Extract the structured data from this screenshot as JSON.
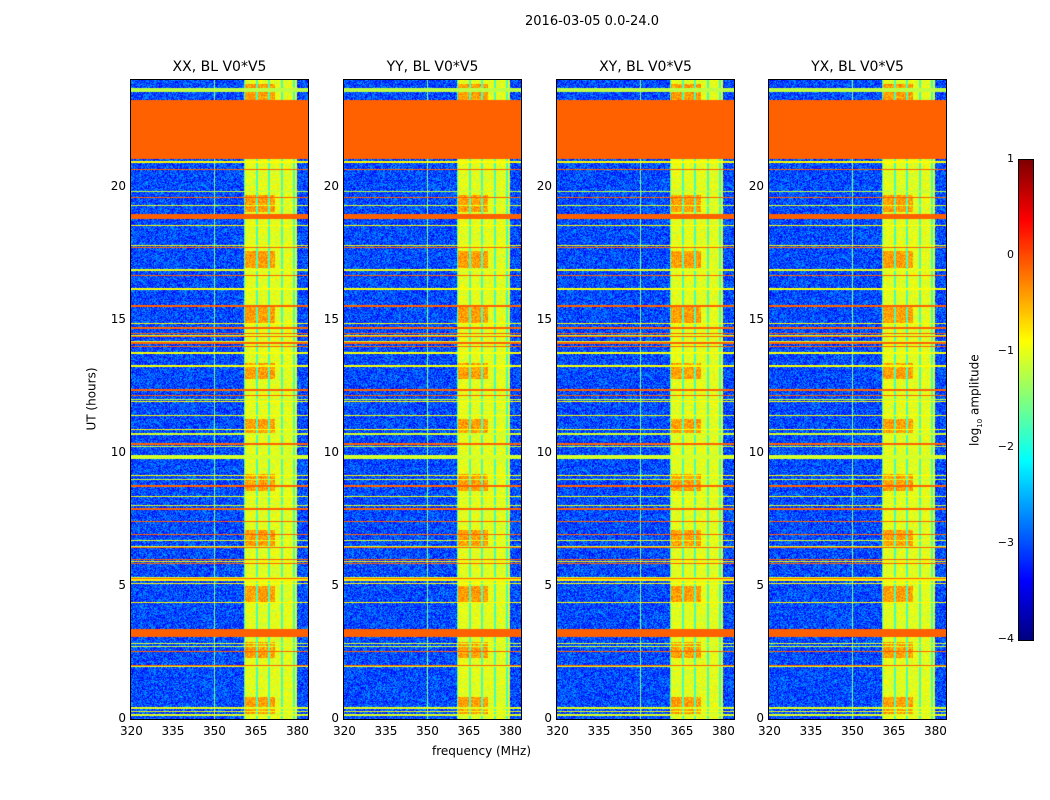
{
  "chart_data": {
    "type": "heatmap",
    "title": "2016-03-05 0.0-24.0",
    "xlabel": "frequency (MHz)",
    "ylabel": "UT (hours)",
    "xlim": [
      320,
      384
    ],
    "ylim": [
      0,
      24
    ],
    "xticks": [
      320,
      335,
      350,
      365,
      380
    ],
    "yticks": [
      0,
      5,
      10,
      15,
      20
    ],
    "panels": [
      {
        "title": "XX, BL V0*V5"
      },
      {
        "title": "YY, BL V0*V5"
      },
      {
        "title": "XY, BL V0*V5"
      },
      {
        "title": "YX, BL V0*V5"
      }
    ],
    "colorbar": {
      "label": "log10 amplitude",
      "label_main": "log",
      "label_sub": "10",
      "label_rest": " amplitude",
      "colormap": "jet",
      "range": [
        -4,
        1
      ],
      "ticks": [
        1,
        0,
        -1,
        -2,
        -3,
        -4
      ],
      "tick_labels": [
        "1",
        "0",
        "−1",
        "−2",
        "−3",
        "−4"
      ]
    },
    "flagged_time_ranges_hours": [
      [
        21.05,
        23.25
      ],
      [
        18.8,
        19.0
      ],
      [
        3.1,
        3.4
      ]
    ],
    "bright_frequency_band_mhz": [
      360.5,
      380
    ],
    "background_level": -3.0,
    "band_level": -1.0,
    "flag_level": -0.1
  }
}
